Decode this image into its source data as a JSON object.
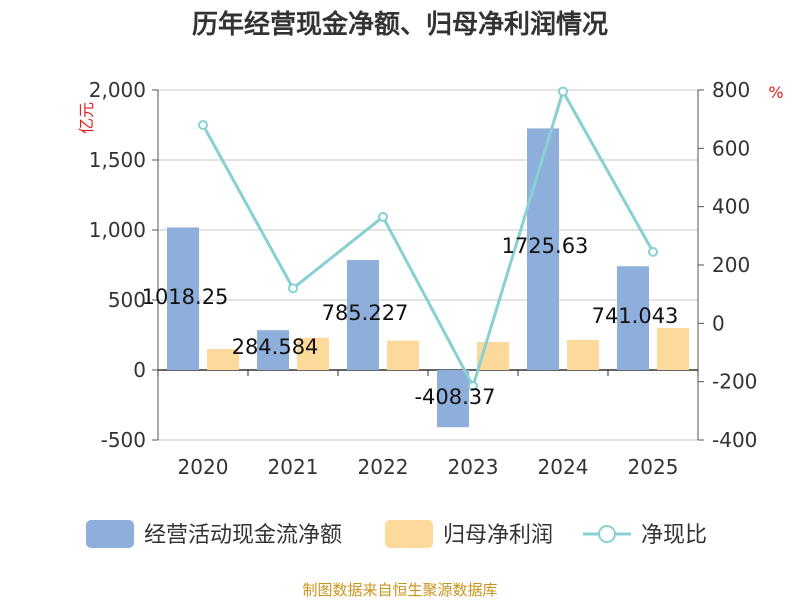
{
  "colors": {
    "cashflow": "#8eaedc",
    "profit": "#fdd99b",
    "ratio": "#88d0d2",
    "unit": "#e02020",
    "source": "#c8951e"
  },
  "chart_data": {
    "type": "bar",
    "title": "历年经营现金净额、归母净利润情况",
    "categories": [
      "2020",
      "2021",
      "2022",
      "2023",
      "2024",
      "2025"
    ],
    "ylabel": "亿元",
    "y2label": "%",
    "ylim": [
      -500,
      2000
    ],
    "yticks": [
      -500,
      0,
      500,
      1000,
      1500,
      2000
    ],
    "ytick_labels": [
      "-500",
      "0",
      "500",
      "1,000",
      "1,500",
      "2,000"
    ],
    "y2lim": [
      -400,
      800
    ],
    "y2ticks": [
      -400,
      -200,
      0,
      200,
      400,
      600,
      800
    ],
    "y2tick_labels": [
      "-400",
      "-200",
      "0",
      "200",
      "400",
      "600",
      "800"
    ],
    "grid": true,
    "legend": "bottom",
    "series": [
      {
        "name": "经营活动现金流净额",
        "kind": "bar",
        "axis": "left",
        "values": [
          1018.25,
          284.584,
          785.227,
          -408.37,
          1725.63,
          741.043
        ],
        "labels": [
          "1018.25",
          "284.584",
          "785.227",
          "-408.37",
          "1725.63",
          "741.043"
        ]
      },
      {
        "name": "归母净利润",
        "kind": "bar",
        "axis": "left",
        "values": [
          150,
          230,
          210,
          200,
          215,
          300
        ]
      },
      {
        "name": "净现比",
        "kind": "line",
        "axis": "right",
        "values": [
          680,
          120,
          365,
          -215,
          795,
          245
        ]
      }
    ]
  },
  "source": "制图数据来自恒生聚源数据库"
}
